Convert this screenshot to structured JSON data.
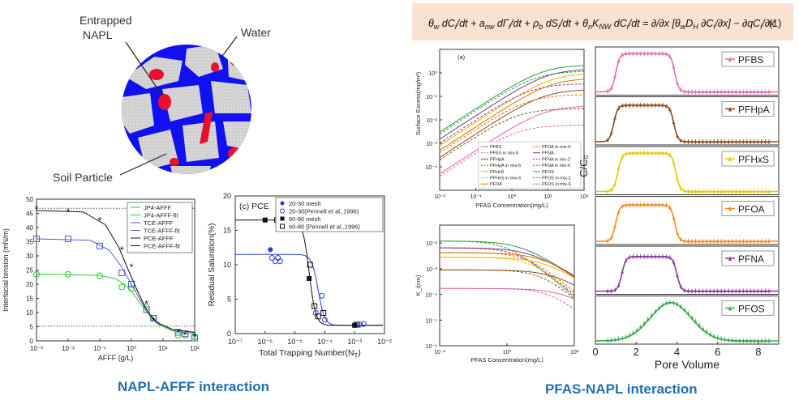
{
  "soil": {
    "labels": {
      "napl": [
        "Entrapped",
        "NAPL"
      ],
      "water": "Water",
      "particle": "Soil Particle"
    },
    "colors": {
      "water": "#1010f0",
      "napl": "#e8102c",
      "particle": "#cfcfcf"
    }
  },
  "captions": {
    "left": "NAPL-AFFF interaction",
    "right": "PFAS-NAPL interaction"
  },
  "equation": {
    "number": "(1)"
  },
  "ift_chart": {
    "chart_data": {
      "type": "line",
      "xlabel": "AFFF (g/L)",
      "ylabel": "Interfacial tension (mN/m)",
      "xscale": "log",
      "xlim": [
        0.001,
        100
      ],
      "ylim": [
        0,
        50
      ],
      "xticks": [
        "10⁻³",
        "10⁻²",
        "10⁻¹",
        "10⁰",
        "10¹",
        "10²"
      ],
      "yticks": [
        "0",
        "5",
        "10",
        "15",
        "20",
        "25",
        "30",
        "35",
        "40",
        "45",
        "50"
      ],
      "legend": [
        "JP4-AFFF",
        "JP4-AFFF-fit",
        "TCE-AFFF",
        "TCE-AFFF-fit",
        "PCE-AFFF",
        "PCE-AFFF-fit"
      ],
      "series": [
        {
          "name": "JP4-AFFF",
          "color": "#2ecc2e",
          "marker": "circle-dot",
          "x": [
            0.001,
            0.01,
            0.1,
            0.5,
            1,
            3,
            5,
            30,
            50,
            100
          ],
          "y": [
            23.5,
            23.5,
            23,
            19,
            18.5,
            12,
            8,
            2,
            2,
            1.5
          ],
          "fit": [
            [
              0.001,
              23.6
            ],
            [
              0.1,
              23.1
            ],
            [
              0.3,
              22
            ],
            [
              0.6,
              20
            ],
            [
              1,
              17.5
            ],
            [
              2,
              13
            ],
            [
              4,
              8.5
            ],
            [
              8,
              5.5
            ],
            [
              20,
              3.5
            ],
            [
              100,
              2.5
            ]
          ]
        },
        {
          "name": "TCE-AFFF",
          "color": "#4f5ad6",
          "marker": "square-dot",
          "x": [
            0.001,
            0.01,
            0.1,
            0.5,
            1,
            3,
            5,
            30,
            50,
            100
          ],
          "y": [
            36,
            36,
            33.5,
            24,
            20,
            11,
            8,
            3,
            2.5,
            1
          ],
          "fit": [
            [
              0.001,
              36
            ],
            [
              0.05,
              35.5
            ],
            [
              0.2,
              32
            ],
            [
              0.5,
              26
            ],
            [
              1,
              20
            ],
            [
              2,
              14
            ],
            [
              4,
              9
            ],
            [
              8,
              6
            ],
            [
              20,
              4
            ],
            [
              100,
              3
            ]
          ]
        },
        {
          "name": "PCE-AFFF",
          "color": "#111111",
          "marker": "star",
          "x": [
            0.001,
            0.01,
            0.1,
            0.5,
            1,
            3,
            5,
            30,
            50,
            100
          ],
          "y": [
            46.5,
            45.5,
            42.5,
            32,
            26,
            13,
            7,
            3,
            2,
            1.5
          ],
          "fit": [
            [
              0.001,
              46
            ],
            [
              0.03,
              45.5
            ],
            [
              0.15,
              41
            ],
            [
              0.4,
              33
            ],
            [
              0.8,
              25
            ],
            [
              1.5,
              18
            ],
            [
              3,
              11
            ],
            [
              6,
              6.5
            ],
            [
              20,
              4
            ],
            [
              100,
              3
            ]
          ]
        }
      ],
      "reference_lines": [
        {
          "y": 5.2,
          "style": "dotted"
        },
        {
          "y": 46.8,
          "style": "dotted"
        }
      ]
    }
  },
  "rs_chart": {
    "chart_data": {
      "type": "scatter",
      "panel_label": "(c) PCE",
      "xlabel": "Total Trapping Number(N_T)",
      "xlabel_main": "Total Trapping Number(N",
      "xlabel_sub": "T",
      "xlabel_end": ")",
      "ylabel": "Residual Saturation(%)",
      "xscale": "log",
      "xlim": [
        1e-07,
        0.01
      ],
      "ylim": [
        0,
        20
      ],
      "xticks": [
        "10⁻⁷",
        "10⁻⁶",
        "10⁻⁵",
        "10⁻⁴",
        "10⁻³",
        "10⁻²"
      ],
      "yticks": [
        "0",
        "5",
        "10",
        "15",
        "20"
      ],
      "legend": [
        "20-30 mesh",
        "20-30(Pennell et al.,1996)",
        "60-80 mesh",
        "60-80 [Pennell et al.,1996)"
      ],
      "series": [
        {
          "name": "20-30 mesh",
          "color": "#2a3bd6",
          "marker": "filled-circle",
          "x": [
            1.5e-06,
            0.001
          ],
          "y": [
            12.2,
            1.3
          ]
        },
        {
          "name": "20-30(Pennell et al.,1996)",
          "color": "#2a3bd6",
          "marker": "open-circle",
          "x": [
            1.7e-06,
            2.2e-06,
            2.7e-06,
            3.2e-06,
            5e-05,
            8e-05,
            0.0001,
            0.0015,
            0.002
          ],
          "y": [
            11,
            10.5,
            11,
            10.5,
            3,
            5.5,
            2,
            1.3,
            1.4
          ]
        },
        {
          "name": "60-80 mesh",
          "color": "#111111",
          "marker": "filled-square",
          "x": [
            1e-06,
            1.5e-05,
            3e-05,
            0.001
          ],
          "y": [
            16.5,
            16.5,
            8,
            1.2
          ]
        },
        {
          "name": "60-80 [Pennell et al.,1996)",
          "color": "#111111",
          "marker": "open-square",
          "x": [
            2.5e-06,
            4e-06,
            6e-06,
            1e-05,
            3.2e-05,
            4.5e-05,
            6e-05,
            9e-05,
            0.0012
          ],
          "y": [
            16.5,
            16.7,
            16.5,
            16.3,
            10,
            4,
            2.5,
            3,
            1.3
          ]
        }
      ],
      "fits": [
        {
          "color": "#2a3bd6",
          "plateau": 11.5,
          "floor": 1.2,
          "mid": 6e-05
        },
        {
          "color": "#111111",
          "plateau": 16.5,
          "floor": 1.2,
          "mid": 3e-05
        }
      ]
    }
  },
  "se_chart": {
    "chart_data": {
      "type": "line",
      "panel_label": "(a)",
      "xlabel": "PFAS Concentration(mg/L)",
      "ylabel": "Surface Excess(mg/m²)",
      "xscale": "log",
      "yscale": "log",
      "xlim": [
        0.01,
        100
      ],
      "ylim": [
        1e-05,
        10
      ],
      "xticks": [
        "10⁻²",
        "10⁻¹",
        "10⁰",
        "10¹",
        "10²"
      ],
      "yticks": [
        "10⁰",
        "10⁻¹",
        "10⁻²",
        "10⁻³",
        "10⁻⁴"
      ],
      "legend": [
        "PFBS",
        "PFBS in mix-6",
        "PFHpA",
        "PFHpA in mix-6",
        "PFHxS",
        "PFHxS in mix-6",
        "PFOA",
        "PFOA in mix-6",
        "PFNA",
        "PFNA in mix-2",
        "PFNA in mix-6",
        "PFOS",
        "PFOS in mix-2",
        "PFOS in mix-6"
      ],
      "legend_colors": [
        "#e85ca5",
        "#e85ca5",
        "#8a4a1c",
        "#8a4a1c",
        "#e8b400",
        "#e8b400",
        "#e86a00",
        "#e86a00",
        "#7a3a8a",
        "#7a3a8a",
        "#7a3a8a",
        "#2a9a3a",
        "#2a9a3a",
        "#2a9a3a"
      ],
      "legend_dash": [
        false,
        true,
        false,
        true,
        false,
        true,
        false,
        true,
        false,
        true,
        true,
        false,
        true,
        true
      ],
      "series": [
        {
          "name": "PFOS",
          "color": "#2a9a3a",
          "y_at_0.01": 0.003,
          "plateau": 2.2,
          "dash": false
        },
        {
          "name": "PFNA",
          "color": "#7a3a8a",
          "y_at_0.01": 0.0015,
          "plateau": 1.5,
          "dash": false
        },
        {
          "name": "PFHxS",
          "color": "#e8b400",
          "y_at_0.01": 0.0008,
          "plateau": 1.0,
          "dash": false
        },
        {
          "name": "PFOA",
          "color": "#e86a00",
          "y_at_0.01": 0.0005,
          "plateau": 0.6,
          "dash": false
        },
        {
          "name": "PFHpA",
          "color": "#8a4a1c",
          "y_at_0.01": 0.00025,
          "plateau": 0.2,
          "dash": false
        },
        {
          "name": "PFBS",
          "color": "#e85ca5",
          "y_at_0.01": 5e-05,
          "plateau": 0.04,
          "dash": false
        },
        {
          "name": "PFOS in mix-6",
          "color": "#2a9a3a",
          "y_at_0.01": 0.0025,
          "plateau": 1.2,
          "dash": true
        },
        {
          "name": "PFNA in mix-6",
          "color": "#7a3a8a",
          "y_at_0.01": 0.001,
          "plateau": 0.35,
          "dash": true
        },
        {
          "name": "PFOA in mix-6",
          "color": "#e86a00",
          "y_at_0.01": 0.0004,
          "plateau": 0.12,
          "dash": true
        },
        {
          "name": "PFHpA in mix-6",
          "color": "#8a4a1c",
          "y_at_0.01": 0.0002,
          "plateau": 0.03,
          "dash": true
        },
        {
          "name": "PFBS in mix-6",
          "color": "#e85ca5",
          "y_at_0.01": 4e-05,
          "plateau": 0.006,
          "dash": true
        }
      ]
    }
  },
  "ki_chart": {
    "chart_data": {
      "type": "line",
      "xlabel": "PFAS Concentration(mg/L)",
      "ylabel": "K_i(cm)",
      "xscale": "log",
      "yscale": "log",
      "xlim": [
        0.01,
        100
      ],
      "ylim": [
        1e-06,
        0.05
      ],
      "xticks": [
        "10⁻²",
        "10⁰",
        "10²"
      ],
      "yticks": [
        "10⁻²",
        "10⁻³",
        "10⁻⁴",
        "10⁻⁵",
        "10⁻⁶"
      ],
      "series": [
        {
          "name": "PFOS",
          "color": "#2a9a3a",
          "k0": 0.012,
          "knee": 3
        },
        {
          "name": "PFNA",
          "color": "#7a3a8a",
          "k0": 0.0065,
          "knee": 6
        },
        {
          "name": "PFOA",
          "color": "#e86a00",
          "k0": 0.0042,
          "knee": 12
        },
        {
          "name": "PFHxS",
          "color": "#e8b400",
          "k0": 0.0028,
          "knee": 15
        },
        {
          "name": "PFHpA",
          "color": "#8a4a1c",
          "k0": 0.0009,
          "knee": 30
        },
        {
          "name": "PFBS",
          "color": "#e85ca5",
          "k0": 0.00017,
          "knee": 60
        }
      ]
    }
  },
  "btc_chart": {
    "chart_data": {
      "type": "line",
      "xlabel": "Pore Volume",
      "ylabel": "C/C₀",
      "xlim": [
        0,
        9
      ],
      "xticks": [
        "0",
        "2",
        "4",
        "6",
        "8"
      ],
      "panels": [
        {
          "name": "PFBS",
          "color": "#e86ab0",
          "rise": 1.0,
          "fall": 3.9,
          "plateau": 1.0,
          "shape": "box"
        },
        {
          "name": "PFHpA",
          "color": "#8a4a1c",
          "rise": 0.9,
          "fall": 3.85,
          "plateau": 0.95,
          "shape": "box"
        },
        {
          "name": "PFHxS",
          "color": "#e8c800",
          "rise": 1.1,
          "fall": 3.95,
          "plateau": 1.0,
          "shape": "box"
        },
        {
          "name": "PFOA",
          "color": "#f08a20",
          "rise": 1.0,
          "fall": 3.9,
          "plateau": 0.95,
          "shape": "box"
        },
        {
          "name": "PFNA",
          "color": "#8a3aa0",
          "rise": 1.3,
          "fall": 4.0,
          "plateau": 0.9,
          "shape": "box"
        },
        {
          "name": "PFOS",
          "color": "#3aa84a",
          "center": 3.7,
          "width": 1.4,
          "plateau": 1.0,
          "shape": "bell"
        }
      ]
    }
  }
}
